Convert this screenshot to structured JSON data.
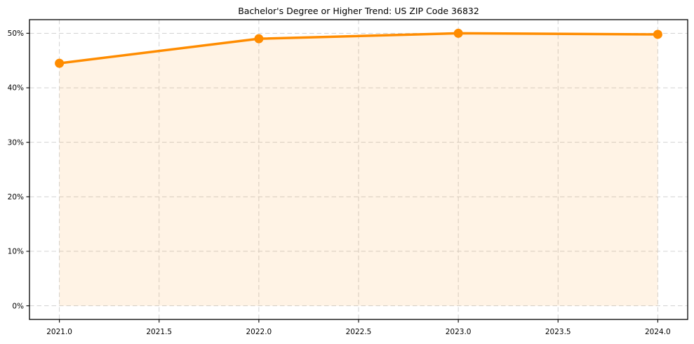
{
  "chart_data": {
    "type": "line",
    "title": "Bachelor's Degree or Higher Trend: US ZIP Code 36832",
    "x": [
      2021.0,
      2022.0,
      2023.0,
      2024.0
    ],
    "values": [
      44.5,
      49.0,
      50.0,
      49.8
    ],
    "xlabel": "",
    "ylabel": "",
    "xlim": [
      2020.85,
      2024.15
    ],
    "ylim": [
      -2.5,
      52.5
    ],
    "xtick_values": [
      2021.0,
      2021.5,
      2022.0,
      2022.5,
      2023.0,
      2023.5,
      2024.0
    ],
    "xtick_labels": [
      "2021.0",
      "2021.5",
      "2022.0",
      "2022.5",
      "2023.0",
      "2023.5",
      "2024.0"
    ],
    "ytick_values": [
      0,
      10,
      20,
      30,
      40,
      50
    ],
    "ytick_labels": [
      "0%",
      "10%",
      "20%",
      "30%",
      "40%",
      "50%"
    ],
    "grid": true,
    "grid_style": "dashed",
    "legend": false,
    "fill_to_zero": true,
    "marker": "circle",
    "colors": {
      "line": "#ff8c00",
      "marker": "#ff8c00",
      "fill": "rgba(255, 140, 0, 0.10)",
      "grid": "#cdcdcd",
      "axis_border": "#000000",
      "tick_text": "#000000",
      "title_text": "#000000",
      "background": "#ffffff"
    }
  }
}
